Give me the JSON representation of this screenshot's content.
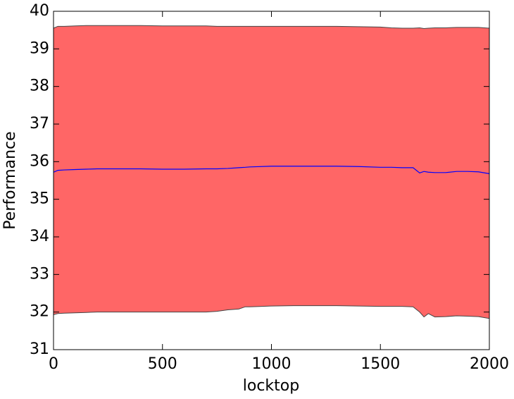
{
  "chart_data": {
    "type": "band-line",
    "xlabel": "locktop",
    "ylabel": "Performance",
    "x": [
      0,
      20,
      50,
      100,
      150,
      200,
      300,
      400,
      500,
      600,
      700,
      750,
      800,
      850,
      880,
      900,
      1000,
      1100,
      1200,
      1300,
      1400,
      1500,
      1550,
      1600,
      1650,
      1680,
      1700,
      1720,
      1750,
      1800,
      1850,
      1900,
      1950,
      2000
    ],
    "y": [
      35.72,
      35.77,
      35.78,
      35.79,
      35.8,
      35.81,
      35.81,
      35.81,
      35.8,
      35.8,
      35.81,
      35.81,
      35.82,
      35.84,
      35.85,
      35.86,
      35.88,
      35.88,
      35.88,
      35.88,
      35.87,
      35.85,
      35.85,
      35.84,
      35.84,
      35.7,
      35.74,
      35.72,
      35.71,
      35.71,
      35.74,
      35.74,
      35.73,
      35.68
    ],
    "line_color": "#0000ff",
    "band": {
      "upper": [
        39.55,
        39.6,
        39.6,
        39.61,
        39.62,
        39.62,
        39.62,
        39.62,
        39.61,
        39.61,
        39.61,
        39.6,
        39.6,
        39.6,
        39.6,
        39.6,
        39.6,
        39.6,
        39.6,
        39.6,
        39.59,
        39.58,
        39.56,
        39.55,
        39.55,
        39.56,
        39.54,
        39.55,
        39.56,
        39.56,
        39.57,
        39.57,
        39.57,
        39.55
      ],
      "lower": [
        31.93,
        31.96,
        31.97,
        31.98,
        31.99,
        32.0,
        32.0,
        32.0,
        32.0,
        32.0,
        32.0,
        32.02,
        32.06,
        32.08,
        32.14,
        32.14,
        32.16,
        32.17,
        32.17,
        32.17,
        32.16,
        32.15,
        32.15,
        32.15,
        32.14,
        32.0,
        31.87,
        31.96,
        31.87,
        31.88,
        31.9,
        31.89,
        31.88,
        31.83
      ],
      "color": "#ff6666",
      "edge_color": "#444444"
    },
    "xlim": [
      0,
      2000
    ],
    "xticks": [
      0,
      500,
      1000,
      1500,
      2000
    ],
    "ylim": [
      31,
      40
    ],
    "yticks": [
      31,
      32,
      33,
      34,
      35,
      36,
      37,
      38,
      39,
      40
    ]
  }
}
